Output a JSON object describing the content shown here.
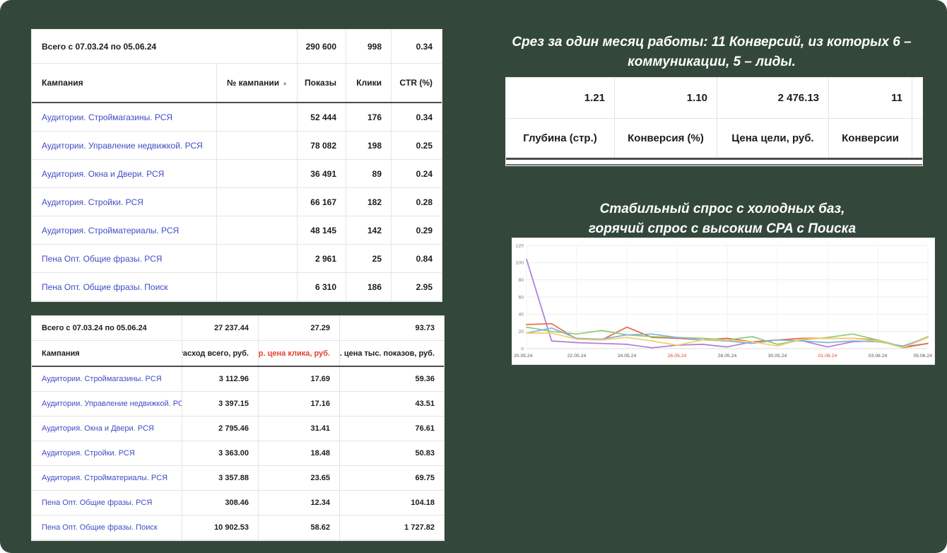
{
  "slide": {
    "background": "#33483a"
  },
  "table_impressions": {
    "total_label": "Всего с 07.03.24 по 05.06.24",
    "total": {
      "shows": "290 600",
      "clicks": "998",
      "ctr": "0.34"
    },
    "headers": {
      "campaign": "Кампания",
      "number": "№ кампании",
      "sort_icon": "▲",
      "shows": "Показы",
      "clicks": "Клики",
      "ctr": "CTR (%)"
    },
    "rows": [
      {
        "campaign": "Аудитории. Строймагазины. РСЯ",
        "shows": "52 444",
        "clicks": "176",
        "ctr": "0.34"
      },
      {
        "campaign": "Аудитории. Управление недвижкой. РСЯ",
        "shows": "78 082",
        "clicks": "198",
        "ctr": "0.25"
      },
      {
        "campaign": "Аудитория. Окна и Двери. РСЯ",
        "shows": "36 491",
        "clicks": "89",
        "ctr": "0.24"
      },
      {
        "campaign": "Аудитория. Стройки. РСЯ",
        "shows": "66 167",
        "clicks": "182",
        "ctr": "0.28"
      },
      {
        "campaign": "Аудитория. Стройматериалы. РСЯ",
        "shows": "48 145",
        "clicks": "142",
        "ctr": "0.29"
      },
      {
        "campaign": "Пена Опт. Общие фразы. РСЯ",
        "shows": "2 961",
        "clicks": "25",
        "ctr": "0.84"
      },
      {
        "campaign": "Пена Опт. Общие фразы. Поиск",
        "shows": "6 310",
        "clicks": "186",
        "ctr": "2.95"
      }
    ]
  },
  "table_costs": {
    "total_label": "Всего с 07.03.24 по 05.06.24",
    "total": {
      "spend": "27 237.44",
      "cpc": "27.29",
      "cpm": "93.73"
    },
    "headers": {
      "campaign": "Кампания",
      "spend": "Расход всего, руб.",
      "cpc": "Ср. цена клика, руб.",
      "cpm": "Ср. цена тыс. показов, руб."
    },
    "cpc_header_color": "#e2412f",
    "rows": [
      {
        "campaign": "Аудитории. Строймагазины. РСЯ",
        "spend": "3 112.96",
        "cpc": "17.69",
        "cpm": "59.36"
      },
      {
        "campaign": "Аудитории. Управление недвижкой. РСЯ",
        "spend": "3 397.15",
        "cpc": "17.16",
        "cpm": "43.51"
      },
      {
        "campaign": "Аудитория. Окна и Двери. РСЯ",
        "spend": "2 795.46",
        "cpc": "31.41",
        "cpm": "76.61"
      },
      {
        "campaign": "Аудитория. Стройки. РСЯ",
        "spend": "3 363.00",
        "cpc": "18.48",
        "cpm": "50.83"
      },
      {
        "campaign": "Аудитория. Стройматериалы. РСЯ",
        "spend": "3 357.88",
        "cpc": "23.65",
        "cpm": "69.75"
      },
      {
        "campaign": "Пена Опт. Общие фразы. РСЯ",
        "spend": "308.46",
        "cpc": "12.34",
        "cpm": "104.18"
      },
      {
        "campaign": "Пена Опт. Общие фразы. Поиск",
        "spend": "10 902.53",
        "cpc": "58.62",
        "cpm": "1 727.82"
      }
    ]
  },
  "conversion_block": {
    "title_line1": "Срез за один месяц работы: 11 Конверсий, из которых 6 –",
    "title_line2": "коммуникации, 5 – лиды.",
    "values": {
      "depth": "1.21",
      "conversion": "1.10",
      "goal_cost": "2 476.13",
      "conversions": "11"
    },
    "headers": {
      "depth": "Глубина (стр.)",
      "conversion": "Конверсия (%)",
      "goal_cost": "Цена цели, руб.",
      "conversions": "Конверсии"
    }
  },
  "chart_block": {
    "title_line1": "Стабильный спрос с холодных баз,",
    "title_line2": "горячий спрос с высоким CPA с Поиска"
  },
  "chart_data": {
    "type": "line",
    "x": [
      "20.05.24",
      "21.05.24",
      "22.05.24",
      "23.05.24",
      "24.05.24",
      "25.05.24",
      "26.05.24",
      "27.05.24",
      "28.05.24",
      "29.05.24",
      "30.05.24",
      "31.05.24",
      "01.06.24",
      "02.06.24",
      "03.06.24",
      "04.06.24",
      "05.06.24"
    ],
    "x_tick_labels": [
      "20.05.24",
      "22.05.24",
      "24.05.24",
      "26.05.24",
      "28.05.24",
      "30.05.24",
      "01.06.24",
      "03.06.24",
      "05.06.24"
    ],
    "red_tick_labels": [
      "26.05.24",
      "01.06.24"
    ],
    "xtick_color": "#555555",
    "xtick_red_color": "#e2412f",
    "ylim": [
      0,
      120
    ],
    "yticks": [
      0,
      20,
      40,
      60,
      80,
      100,
      120
    ],
    "grid": true,
    "legend": "none",
    "series": [
      {
        "name": "purple",
        "color": "#b07cd6",
        "values": [
          104,
          9,
          7,
          6,
          5,
          1,
          4,
          5,
          2,
          8,
          10,
          9,
          2,
          8,
          9,
          2,
          6
        ]
      },
      {
        "name": "red",
        "color": "#e8684a",
        "values": [
          28,
          29,
          11,
          10,
          25,
          13,
          12,
          10,
          12,
          8,
          10,
          12,
          12,
          12,
          10,
          1,
          6
        ]
      },
      {
        "name": "green",
        "color": "#8fc97a",
        "values": [
          25,
          20,
          17,
          21,
          16,
          14,
          13,
          12,
          10,
          14,
          5,
          10,
          13,
          17,
          10,
          2,
          14
        ]
      },
      {
        "name": "blue",
        "color": "#86b3dd",
        "values": [
          18,
          24,
          12,
          11,
          16,
          17,
          13,
          10,
          9,
          6,
          10,
          9,
          7,
          9,
          8,
          3,
          13
        ]
      },
      {
        "name": "yellow",
        "color": "#f3cf63",
        "values": [
          18,
          18,
          11,
          10,
          13,
          9,
          4,
          10,
          10,
          8,
          3,
          11,
          12,
          12,
          9,
          1,
          13
        ]
      }
    ]
  }
}
